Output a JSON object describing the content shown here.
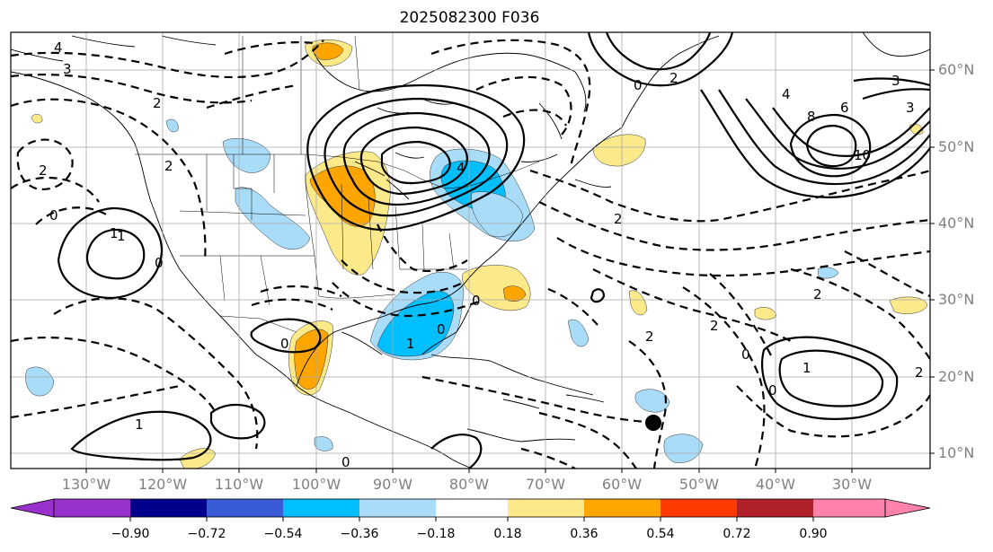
{
  "title": "2025082300 F036",
  "axes": {
    "lon_ticks": [
      "130°W",
      "120°W",
      "110°W",
      "100°W",
      "90°W",
      "80°W",
      "70°W",
      "60°W",
      "50°W",
      "40°W",
      "30°W"
    ],
    "lat_ticks": [
      "10°N",
      "20°N",
      "30°N",
      "40°N",
      "50°N",
      "60°N"
    ],
    "lon_range": [
      -136,
      -16
    ],
    "lat_range": [
      7,
      64
    ]
  },
  "colorbar": {
    "labels": [
      "−0.90",
      "−0.72",
      "−0.54",
      "−0.36",
      "−0.18",
      "0.18",
      "0.36",
      "0.54",
      "0.72",
      "0.90"
    ],
    "colors": [
      "#9932cc",
      "#00008b",
      "#3a5bd6",
      "#00bfff",
      "#a8dcf8",
      "#ffffff",
      "#fce98a",
      "#ffa500",
      "#ff3a00",
      "#b0212a",
      "#ff82ab"
    ],
    "extend": "both"
  },
  "contour_labels": [
    "4",
    "3",
    "2",
    "2",
    "0",
    "2",
    "1",
    "0",
    "2",
    "0",
    "1",
    "0",
    "1",
    "0",
    "2",
    "0",
    "4",
    "6",
    "8",
    "10",
    "3",
    "2",
    "2",
    "2",
    "0",
    "2",
    "1",
    "0",
    "1",
    "3",
    "4",
    "0"
  ],
  "colors": {
    "blue_shade": "#a8dcf8",
    "deep_blue_shade": "#00bfff",
    "yellow_shade": "#fce98a",
    "orange_shade": "#ffa500",
    "grid": "#a9a9a9"
  }
}
